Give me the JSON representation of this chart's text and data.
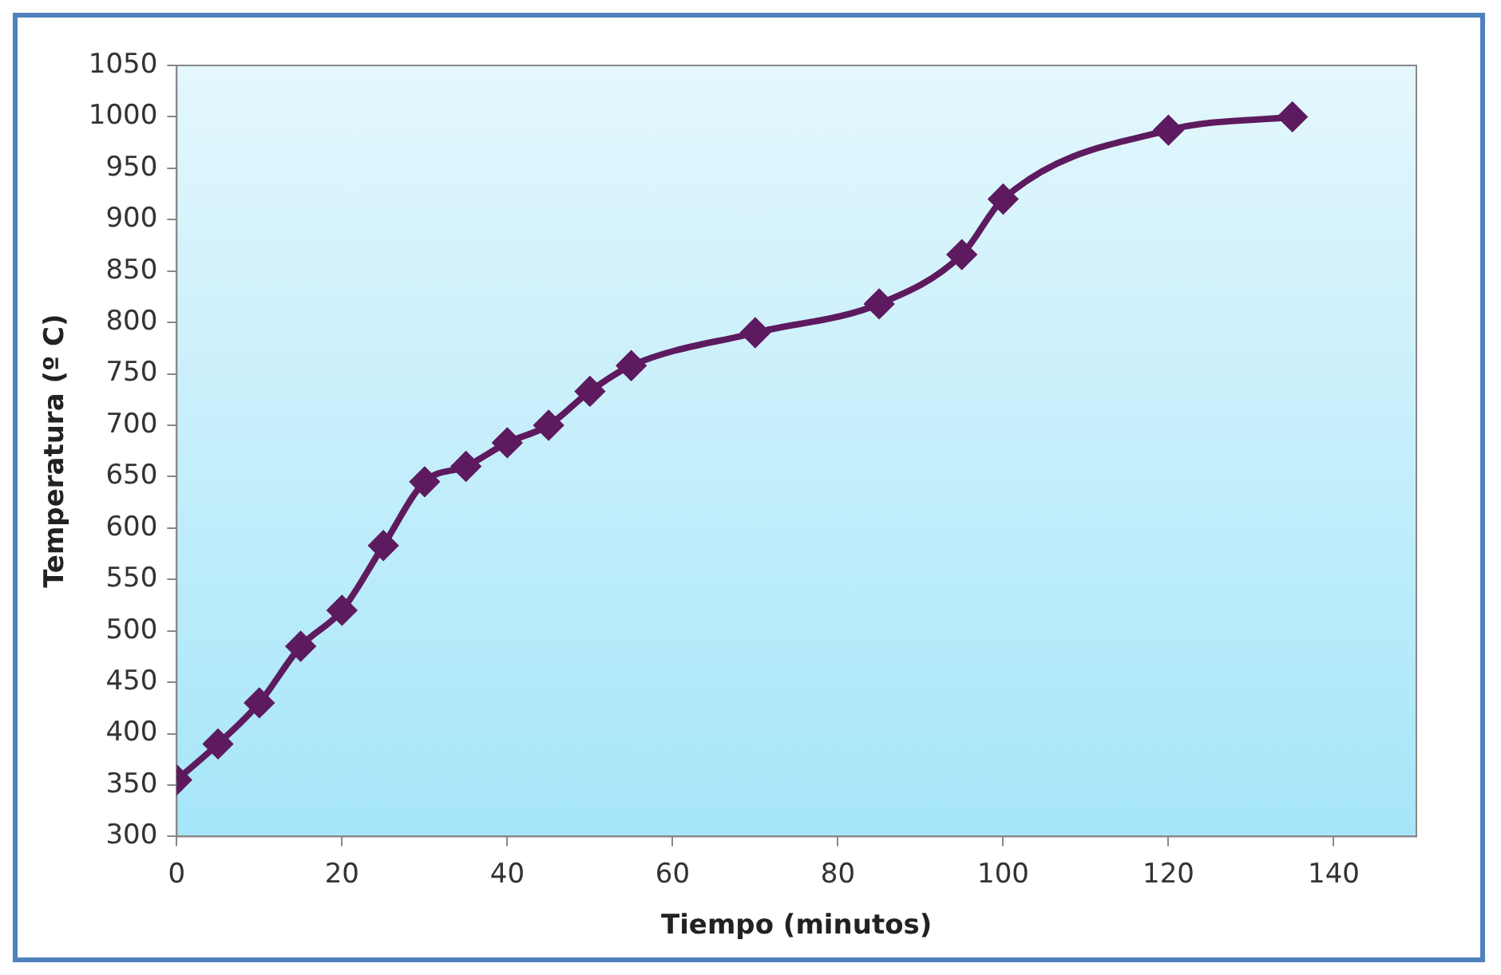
{
  "chart_data": {
    "type": "line",
    "xlabel": "Tiempo (minutos)",
    "ylabel": "Temperatura (º C)",
    "x": [
      0,
      5,
      10,
      15,
      20,
      25,
      30,
      35,
      40,
      45,
      50,
      55,
      70,
      85,
      95,
      100,
      120,
      135
    ],
    "series": [
      {
        "color": "#5e1a5e",
        "values": [
          355,
          390,
          430,
          485,
          520,
          583,
          645,
          660,
          683,
          700,
          733,
          758,
          790,
          818,
          866,
          920,
          987,
          1000
        ]
      }
    ],
    "xlim": [
      0,
      150
    ],
    "xticks": [
      0,
      20,
      40,
      60,
      80,
      100,
      120,
      140
    ],
    "ylim": [
      300,
      1050
    ],
    "yticks": [
      300,
      350,
      400,
      450,
      500,
      550,
      600,
      650,
      700,
      750,
      800,
      850,
      900,
      950,
      1000,
      1050
    ],
    "grid": false,
    "legend": false,
    "marker": "diamond",
    "line_style": "solid"
  }
}
